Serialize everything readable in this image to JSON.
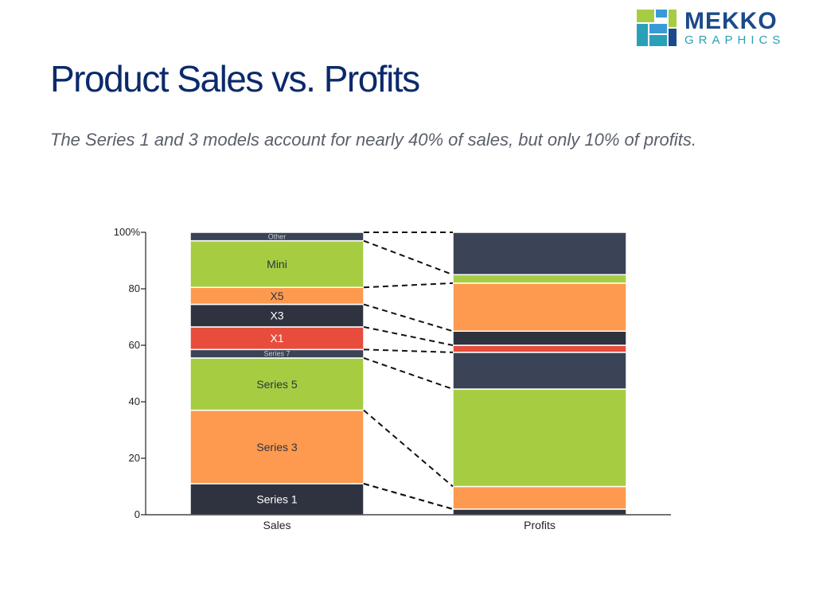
{
  "brand": {
    "line1": "MEKKO",
    "line2": "GRAPHICS"
  },
  "title": "Product Sales vs. Profits",
  "subtitle": "The Series 1 and 3 models account for nearly 40% of sales, but only 10% of profits.",
  "chart_data": {
    "type": "bar",
    "stacked": "percent",
    "categories": [
      "Sales",
      "Profits"
    ],
    "ylim": [
      0,
      100
    ],
    "y_ticks": [
      "0",
      "20",
      "40",
      "60",
      "80",
      "100%"
    ],
    "connectors": "dashed",
    "series": [
      {
        "name": "Series 1",
        "color": "#2f3340",
        "values": [
          11,
          2
        ]
      },
      {
        "name": "Series 3",
        "color": "#fd9a4f",
        "values": [
          26,
          8
        ]
      },
      {
        "name": "Series 5",
        "color": "#a6cd42",
        "values": [
          18.5,
          34.5
        ]
      },
      {
        "name": "Series 7",
        "color": "#3b4456",
        "values": [
          3,
          13
        ]
      },
      {
        "name": "X1",
        "color": "#e84c3c",
        "values": [
          8,
          2.5
        ]
      },
      {
        "name": "X3",
        "color": "#2f3340",
        "values": [
          8,
          5
        ]
      },
      {
        "name": "X5",
        "color": "#fd9a4f",
        "values": [
          6,
          17
        ]
      },
      {
        "name": "Mini",
        "color": "#a6cd42",
        "values": [
          16.5,
          3
        ]
      },
      {
        "name": "Other",
        "color": "#3b4456",
        "values": [
          3,
          15
        ]
      }
    ]
  }
}
